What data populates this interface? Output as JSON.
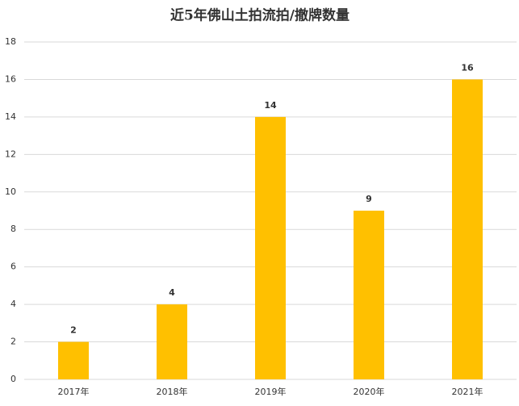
{
  "chart_data": {
    "type": "bar",
    "title": "近5年佛山土拍流拍/撤牌数量",
    "categories": [
      "2017年",
      "2018年",
      "2019年",
      "2020年",
      "2021年"
    ],
    "values": [
      2,
      4,
      14,
      9,
      16
    ],
    "color": "#ffc000",
    "ylim": [
      0,
      18
    ],
    "yticks": [
      0,
      2,
      4,
      6,
      8,
      10,
      12,
      14,
      16,
      18
    ],
    "grid": true
  }
}
